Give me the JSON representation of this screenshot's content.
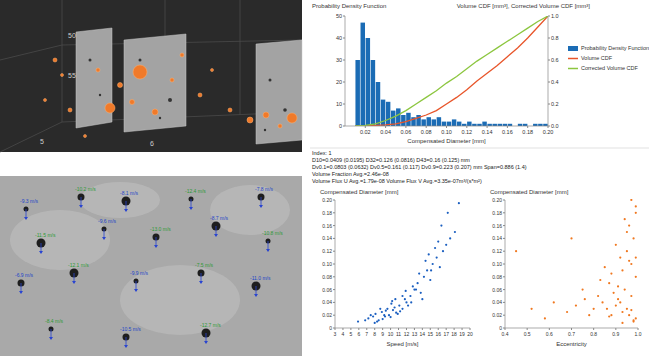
{
  "view_3d": {
    "axis_labels": [
      "50",
      "55",
      "5",
      "6"
    ]
  },
  "particle_image": {
    "labels": [
      "-9.3 m/s",
      "-10.2 m/s",
      "-8.1 m/s",
      "-12.4 m/s",
      "-7.8 m/s",
      "-11.5 m/s",
      "-9.6 m/s",
      "-13.0 m/s",
      "-8.7 m/s",
      "-10.8 m/s",
      "-6.9 m/s",
      "-12.1 m/s",
      "-9.9 m/s",
      "-7.5 m/s",
      "-11.0 m/s",
      "-8.4 m/s",
      "-10.5 m/s",
      "-12.7 m/s"
    ]
  },
  "chart_data": [
    {
      "type": "histogram",
      "y_label": "Probability Density Function",
      "y2_label": "Volume CDF [mm³], Corrected Volume CDF [mm³]",
      "x_label": "Compensated Diameter [mm]",
      "xlim": [
        0,
        0.2
      ],
      "xticks": [
        0.02,
        0.04,
        0.06,
        0.08,
        {
          "value": 0.1,
          "label": "0.10"
        },
        0.12,
        0.14,
        0.16,
        0.18,
        {
          "value": 0.2,
          "label": "0.20"
        }
      ],
      "ylim": [
        0,
        50
      ],
      "yticks": [
        0,
        10,
        20,
        30,
        40,
        50
      ],
      "y2lim": [
        0,
        1
      ],
      "y2ticks": [
        {
          "value": 0,
          "label": "0.0"
        },
        0.2,
        0.4,
        0.6,
        0.8,
        {
          "value": 1,
          "label": "1.0"
        }
      ],
      "grid": false,
      "legend": "right",
      "bins": [
        0.01,
        0.015,
        0.02,
        0.025,
        0.03,
        0.035,
        0.04,
        0.045,
        0.05,
        0.055,
        0.06,
        0.065,
        0.07,
        0.075,
        0.08,
        0.085,
        0.09,
        0.095,
        0.1,
        0.105,
        0.11,
        0.115,
        0.12,
        0.125,
        0.13,
        0.135,
        0.14,
        0.145,
        0.15,
        0.155,
        0.16,
        0.165,
        0.17,
        0.175,
        0.18,
        0.185,
        0.19,
        0.195,
        0.2
      ],
      "series": [
        {
          "name": "Probability Density Function",
          "type": "bar",
          "color": "#1b6cb5",
          "values": [
            30,
            47,
            40,
            30,
            20,
            12,
            11,
            7,
            8,
            5,
            6,
            4,
            5,
            3,
            4,
            3,
            4,
            2,
            2,
            3,
            2,
            1,
            2,
            1,
            1,
            2,
            1,
            1,
            1,
            1,
            1,
            0,
            1,
            1,
            0,
            1,
            1,
            1
          ]
        },
        {
          "name": "Volume CDF",
          "type": "line",
          "axis": "y2",
          "color": "#e8552a",
          "x": [
            0.01,
            0.02,
            0.03,
            0.04,
            0.05,
            0.06,
            0.07,
            0.08,
            0.09,
            0.1,
            0.11,
            0.12,
            0.13,
            0.14,
            0.15,
            0.16,
            0.17,
            0.18,
            0.19,
            0.2
          ],
          "values": [
            0,
            0,
            0.005,
            0.01,
            0.02,
            0.04,
            0.07,
            0.1,
            0.14,
            0.2,
            0.26,
            0.33,
            0.41,
            0.48,
            0.55,
            0.63,
            0.71,
            0.8,
            0.9,
            1.0
          ]
        },
        {
          "name": "Corrected Volume CDF",
          "type": "line",
          "axis": "y2",
          "color": "#8cc63f",
          "x": [
            0.01,
            0.02,
            0.03,
            0.04,
            0.05,
            0.06,
            0.07,
            0.08,
            0.09,
            0.1,
            0.11,
            0.12,
            0.13,
            0.14,
            0.15,
            0.16,
            0.17,
            0.18,
            0.19,
            0.2
          ],
          "values": [
            0,
            0.005,
            0.02,
            0.05,
            0.09,
            0.14,
            0.2,
            0.26,
            0.32,
            0.39,
            0.45,
            0.52,
            0.59,
            0.65,
            0.71,
            0.77,
            0.83,
            0.89,
            0.95,
            1.0
          ]
        }
      ],
      "annotations": [
        "Index: 1",
        "D10=0.0409 (0.0195) D32=0.126 (0.0816) D43=0.16 (0.125) mm",
        "Dv0.1=0.0803 (0.0632) Dv0.5=0.161 (0.117) Dv0.9=0.223 (0.207) mm  Span=0.886 (1.4)",
        "Volume Fraction Avg.=2.46e-08",
        "Volume Flux U Avg.=1.79e-08  Volume Flux V Avg.=3.35e-07m³/(s*m²)"
      ]
    },
    {
      "type": "scatter",
      "title": "Compensated Diameter [mm]",
      "x_label": "Speed [m/s]",
      "xlim": [
        3,
        20
      ],
      "xticks": [
        3,
        4,
        5,
        6,
        7,
        8,
        9,
        10,
        11,
        12,
        13,
        14,
        15,
        16,
        17,
        18,
        19,
        20
      ],
      "ylim": [
        0,
        0.2
      ],
      "yticks": [
        0,
        0.02,
        0.04,
        0.06,
        0.08,
        {
          "value": 0.1,
          "label": "0.10"
        },
        0.12,
        0.14,
        0.16,
        0.18,
        {
          "value": 0.2,
          "label": "0.20"
        }
      ],
      "grid": false,
      "series": [
        {
          "color": "#1b5fc0",
          "marker": "circle",
          "x": [
            7.2,
            7.8,
            8.1,
            8.5,
            8.9,
            9.2,
            9.6,
            10.0,
            10.3,
            10.7,
            11.1,
            11.5,
            8.3,
            9.0,
            9.8,
            10.5,
            11.2,
            12.0,
            7.5,
            8.7,
            9.4,
            10.1,
            10.9,
            11.8,
            12.5,
            13.0,
            12.2,
            13.4,
            13.8,
            14.2,
            14.6,
            15.0,
            15.3,
            15.8,
            16.2,
            16.6,
            17.0,
            17.5,
            18.1,
            12.8,
            13.6,
            14.4,
            15.1,
            15.6,
            16.4,
            17.2,
            14.0,
            11.5,
            12.6,
            10.6,
            9.3,
            8.0,
            13.2,
            14.8,
            16.0,
            18.6,
            11.9,
            10.2,
            6.8,
            5.9
          ],
          "values": [
            0.015,
            0.018,
            0.022,
            0.012,
            0.025,
            0.02,
            0.03,
            0.017,
            0.028,
            0.024,
            0.035,
            0.03,
            0.01,
            0.014,
            0.02,
            0.032,
            0.026,
            0.04,
            0.02,
            0.03,
            0.027,
            0.038,
            0.022,
            0.045,
            0.05,
            0.06,
            0.035,
            0.07,
            0.055,
            0.08,
            0.09,
            0.075,
            0.1,
            0.11,
            0.095,
            0.12,
            0.13,
            0.14,
            0.15,
            0.065,
            0.085,
            0.105,
            0.09,
            0.125,
            0.16,
            0.18,
            0.045,
            0.05,
            0.04,
            0.045,
            0.018,
            0.008,
            0.06,
            0.115,
            0.135,
            0.195,
            0.058,
            0.042,
            0.012,
            0.01
          ]
        }
      ]
    },
    {
      "type": "scatter",
      "title": "Compensated Diameter [mm]",
      "x_label": "Eccentricity",
      "xlim": [
        0.4,
        1.0
      ],
      "xticks": [
        0.4,
        0.5,
        0.6,
        0.7,
        0.8,
        0.9,
        {
          "value": 1,
          "label": "1.0"
        }
      ],
      "ylim": [
        0,
        0.2
      ],
      "yticks": [
        0,
        0.02,
        0.04,
        0.06,
        0.08,
        {
          "value": 0.1,
          "label": "0.10"
        },
        0.12,
        0.14,
        0.16,
        0.18,
        {
          "value": 0.2,
          "label": "0.20"
        }
      ],
      "grid": false,
      "series": [
        {
          "color": "#f07820",
          "marker": "circle",
          "x": [
            0.98,
            0.96,
            0.99,
            0.95,
            0.93,
            0.97,
            0.92,
            0.9,
            0.88,
            0.99,
            0.94,
            0.91,
            0.86,
            0.97,
            0.95,
            0.89,
            0.84,
            0.98,
            0.93,
            0.96,
            0.82,
            0.8,
            0.87,
            0.99,
            0.92,
            0.78,
            0.75,
            0.85,
            0.9,
            0.97,
            0.72,
            0.95,
            0.68,
            0.88,
            0.99,
            0.94,
            0.62,
            0.58,
            0.91,
            0.96,
            0.83,
            0.76,
            0.52,
            0.45,
            0.98,
            0.93,
            0.87,
            0.7,
            0.97,
            0.99
          ],
          "values": [
            0.01,
            0.02,
            0.015,
            0.03,
            0.025,
            0.05,
            0.04,
            0.035,
            0.02,
            0.08,
            0.06,
            0.045,
            0.03,
            0.1,
            0.12,
            0.055,
            0.04,
            0.14,
            0.09,
            0.16,
            0.05,
            0.03,
            0.07,
            0.18,
            0.11,
            0.02,
            0.06,
            0.095,
            0.13,
            0.2,
            0.035,
            0.15,
            0.025,
            0.085,
            0.19,
            0.17,
            0.04,
            0.015,
            0.065,
            0.105,
            0.075,
            0.045,
            0.03,
            0.12,
            0.012,
            0.008,
            0.018,
            0.14,
            0.028,
            0.11
          ]
        }
      ]
    }
  ]
}
